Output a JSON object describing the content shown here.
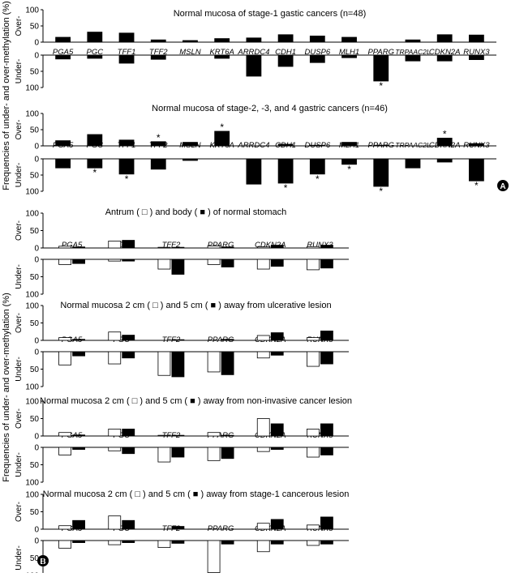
{
  "figure": {
    "ylabel_top": "Frequencies of under- and over-methylation (%)",
    "ylabel_bottom": "Frequencies of under- and over-methylation (%)",
    "panel_a_label": "A",
    "panel_b_label": "B",
    "over_label": "Over-",
    "under_label": "Under-",
    "star": "*",
    "colors": {
      "filled": "#000000",
      "open": "#ffffff",
      "axis": "#000000"
    }
  },
  "chart_data": [
    {
      "type": "bar",
      "title": "Normal mucosa of stage-1 gastic cancers (n=48)",
      "categories": [
        "PGA5",
        "PGC",
        "TFF1",
        "TFF2",
        "MSLN",
        "KRT6A",
        "ARRDC4",
        "CDH1",
        "DUSP6",
        "MLH1",
        "PPARG",
        "TRPAAC2L",
        "CDKN2A",
        "RUNX3"
      ],
      "over_ticks": [
        "100",
        "50",
        "0"
      ],
      "under_ticks": [
        "0",
        "50",
        "100"
      ],
      "series": [
        {
          "style": "filled",
          "over": [
            15,
            31,
            28,
            7,
            5,
            11,
            13,
            23,
            19,
            15,
            0,
            7,
            23,
            22
          ],
          "under": [
            12,
            10,
            25,
            13,
            0,
            10,
            65,
            35,
            23,
            8,
            80,
            18,
            18,
            14
          ]
        }
      ],
      "stars": [
        {
          "category": "PPARG",
          "side": "under"
        }
      ]
    },
    {
      "type": "bar",
      "title": "Normal mucosa of stage-2, -3, and 4 gastric cancers (n=46)",
      "categories": [
        "PGA5",
        "PGC",
        "TFF1",
        "TFF2",
        "MSLN",
        "KRT6A",
        "ARRDC4",
        "CDH1",
        "DUSP6",
        "MLH1",
        "PPARG",
        "TRPAAC2L",
        "CDKN2A",
        "RUNX3"
      ],
      "over_ticks": [
        "100",
        "50",
        "0"
      ],
      "under_ticks": [
        "0",
        "50",
        "100"
      ],
      "series": [
        {
          "style": "filled",
          "over": [
            16,
            35,
            18,
            13,
            11,
            45,
            0,
            5,
            2,
            11,
            2,
            0,
            24,
            7
          ],
          "under": [
            28,
            28,
            47,
            32,
            5,
            0,
            78,
            75,
            47,
            17,
            85,
            28,
            10,
            68
          ]
        }
      ],
      "stars": [
        {
          "category": "TFF2",
          "side": "over"
        },
        {
          "category": "KRT6A",
          "side": "over"
        },
        {
          "category": "CDKN2A",
          "side": "over"
        },
        {
          "category": "PGC",
          "side": "under"
        },
        {
          "category": "TFF1",
          "side": "under"
        },
        {
          "category": "CDH1",
          "side": "under"
        },
        {
          "category": "DUSP6",
          "side": "under"
        },
        {
          "category": "MLH1",
          "side": "under"
        },
        {
          "category": "PPARG",
          "side": "under"
        },
        {
          "category": "RUNX3",
          "side": "under"
        }
      ]
    },
    {
      "type": "bar",
      "title": "Antrum ( □ ) and body ( ■ ) of normal stomach",
      "categories": [
        "PGA5",
        "PGC",
        "TFF2",
        "PPARG",
        "CDKN2A",
        "RUNX3"
      ],
      "over_ticks": [
        "100",
        "50",
        "0"
      ],
      "under_ticks": [
        "0",
        "50",
        "100"
      ],
      "series": [
        {
          "style": "open",
          "over": [
            5,
            20,
            2,
            6,
            3,
            4
          ],
          "under": [
            15,
            5,
            28,
            15,
            28,
            30
          ]
        },
        {
          "style": "filled",
          "over": [
            3,
            22,
            2,
            3,
            8,
            8
          ],
          "under": [
            12,
            5,
            43,
            22,
            20,
            25
          ]
        }
      ],
      "stars": []
    },
    {
      "type": "bar",
      "title": "Normal mucosa 2 cm ( □ ) and 5 cm ( ■ ) away from ulcerative lesion",
      "categories": [
        "PGA5",
        "PGC",
        "TFF2",
        "PPARG",
        "CDKN2A",
        "RUNX3"
      ],
      "over_ticks": [
        "100",
        "50",
        "0"
      ],
      "under_ticks": [
        "0",
        "50",
        "100"
      ],
      "series": [
        {
          "style": "open",
          "over": [
            8,
            24,
            0,
            0,
            14,
            8
          ],
          "under": [
            38,
            35,
            68,
            58,
            18,
            42
          ]
        },
        {
          "style": "filled",
          "over": [
            3,
            15,
            2,
            3,
            22,
            27
          ],
          "under": [
            12,
            18,
            72,
            66,
            10,
            35
          ]
        }
      ],
      "stars": []
    },
    {
      "type": "bar",
      "title": "Normal mucosa 2 cm ( □ ) and 5 cm ( ■ ) away from non-invasive cancer lesion",
      "categories": [
        "PGA5",
        "PGC",
        "TFF2",
        "PPARG",
        "CDKN2A",
        "RUNX3"
      ],
      "over_ticks": [
        "100",
        "50",
        "0"
      ],
      "under_ticks": [
        "0",
        "50",
        "100"
      ],
      "series": [
        {
          "style": "open",
          "over": [
            10,
            20,
            2,
            10,
            50,
            20
          ],
          "under": [
            22,
            10,
            42,
            38,
            12,
            28
          ]
        },
        {
          "style": "filled",
          "over": [
            3,
            20,
            2,
            2,
            35,
            35
          ],
          "under": [
            6,
            18,
            28,
            32,
            6,
            22
          ]
        }
      ],
      "stars": []
    },
    {
      "type": "bar",
      "title": "Normal mucosa 2 cm ( □ ) and 5 cm ( ■ ) away from stage-1 cancerous lesion",
      "categories": [
        "PGA5",
        "PGC",
        "TFF2",
        "PPARG",
        "CDKN2A",
        "RUNX3"
      ],
      "over_ticks": [
        "100",
        "50",
        "0"
      ],
      "under_ticks": [
        "0",
        "50",
        "100"
      ],
      "series": [
        {
          "style": "open",
          "over": [
            10,
            38,
            0,
            0,
            17,
            12
          ],
          "under": [
            22,
            12,
            20,
            92,
            32,
            14
          ]
        },
        {
          "style": "filled",
          "over": [
            25,
            25,
            8,
            0,
            28,
            35
          ],
          "under": [
            6,
            6,
            8,
            10,
            10,
            10
          ]
        }
      ],
      "stars": []
    }
  ]
}
